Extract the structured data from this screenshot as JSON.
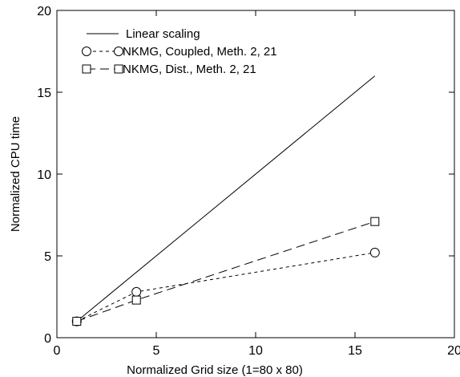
{
  "chart_data": {
    "type": "line",
    "xlabel": "Normalized Grid size (1=80 x 80)",
    "ylabel": "Normalized CPU time",
    "xlim": [
      0,
      20
    ],
    "ylim": [
      0,
      20
    ],
    "xticks": [
      0,
      5,
      10,
      15,
      20
    ],
    "yticks": [
      0,
      5,
      10,
      15,
      20
    ],
    "grid": false,
    "legend_position": "top-left",
    "series": [
      {
        "name": "Linear scaling",
        "line_style": "solid",
        "marker": "none",
        "color": "#000000",
        "points": [
          [
            1,
            1
          ],
          [
            16,
            16
          ]
        ]
      },
      {
        "name": "NKMG, Coupled, Meth. 2, 21",
        "line_style": "short-dash",
        "marker": "circle",
        "color": "#000000",
        "points": [
          [
            1,
            1.0
          ],
          [
            4,
            2.8
          ],
          [
            16,
            5.2
          ]
        ]
      },
      {
        "name": "NKMG, Dist., Meth. 2, 21",
        "line_style": "long-dash",
        "marker": "square",
        "color": "#000000",
        "points": [
          [
            1,
            1.0
          ],
          [
            4,
            2.3
          ],
          [
            16,
            7.1
          ]
        ]
      }
    ]
  }
}
